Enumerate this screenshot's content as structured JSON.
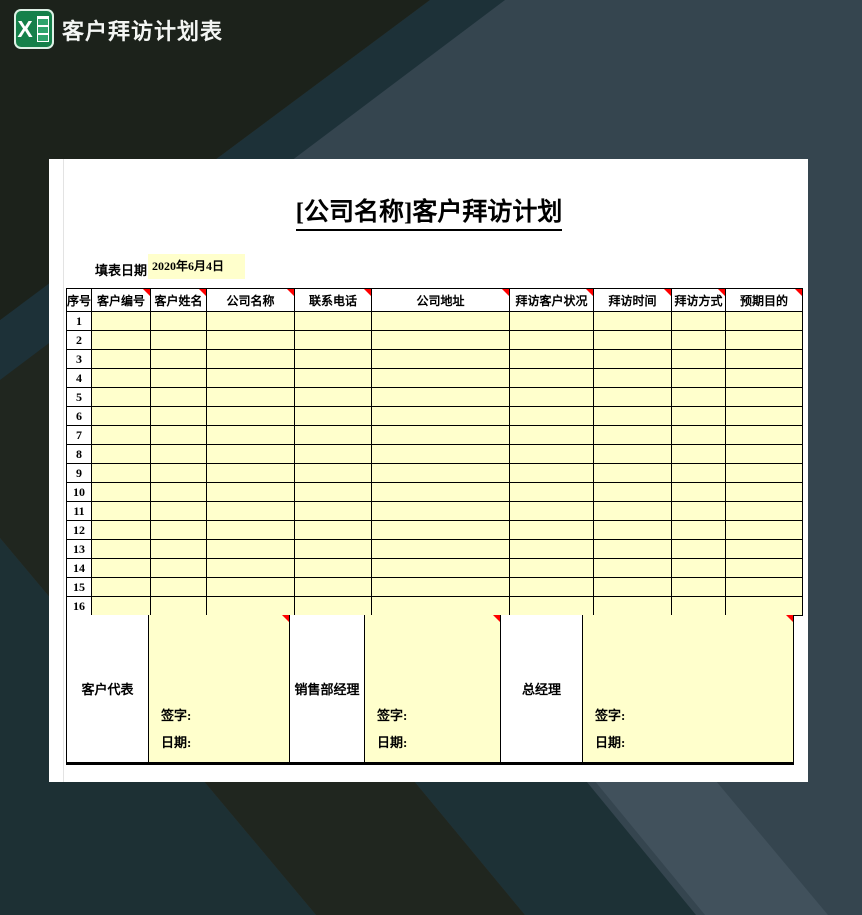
{
  "titlebar": {
    "app_title": "客户拜访计划表",
    "icon_letter": "X"
  },
  "page": {
    "title": "[公司名称]客户拜访计划",
    "form_date_label": "填表日期：",
    "form_date_value": "2020年6月4日"
  },
  "table": {
    "headers": [
      {
        "label": "序号",
        "has_note": false
      },
      {
        "label": "客户编号",
        "has_note": true
      },
      {
        "label": "客户姓名",
        "has_note": true
      },
      {
        "label": "公司名称",
        "has_note": true
      },
      {
        "label": "联系电话",
        "has_note": true
      },
      {
        "label": "公司地址",
        "has_note": true
      },
      {
        "label": "拜访客户状况",
        "has_note": true
      },
      {
        "label": "拜访时间",
        "has_note": true
      },
      {
        "label": "拜访方式",
        "has_note": true
      },
      {
        "label": "预期目的",
        "has_note": true
      }
    ],
    "row_numbers": [
      "1",
      "2",
      "3",
      "4",
      "5",
      "6",
      "7",
      "8",
      "9",
      "10",
      "11",
      "12",
      "13",
      "14",
      "15",
      "16"
    ]
  },
  "signatures": [
    {
      "role": "客户代表",
      "sign_label": "签字:",
      "date_label": "日期:",
      "has_note": true
    },
    {
      "role": "销售部经理",
      "sign_label": "签字:",
      "date_label": "日期:",
      "has_note": true
    },
    {
      "role": "总经理",
      "sign_label": "签字:",
      "date_label": "日期:",
      "has_note": true
    }
  ],
  "colors": {
    "cell_fill": "#ffffcc",
    "comment_flag": "#ff0000",
    "excel_green": "#15804a",
    "background_base": "#35454f"
  }
}
